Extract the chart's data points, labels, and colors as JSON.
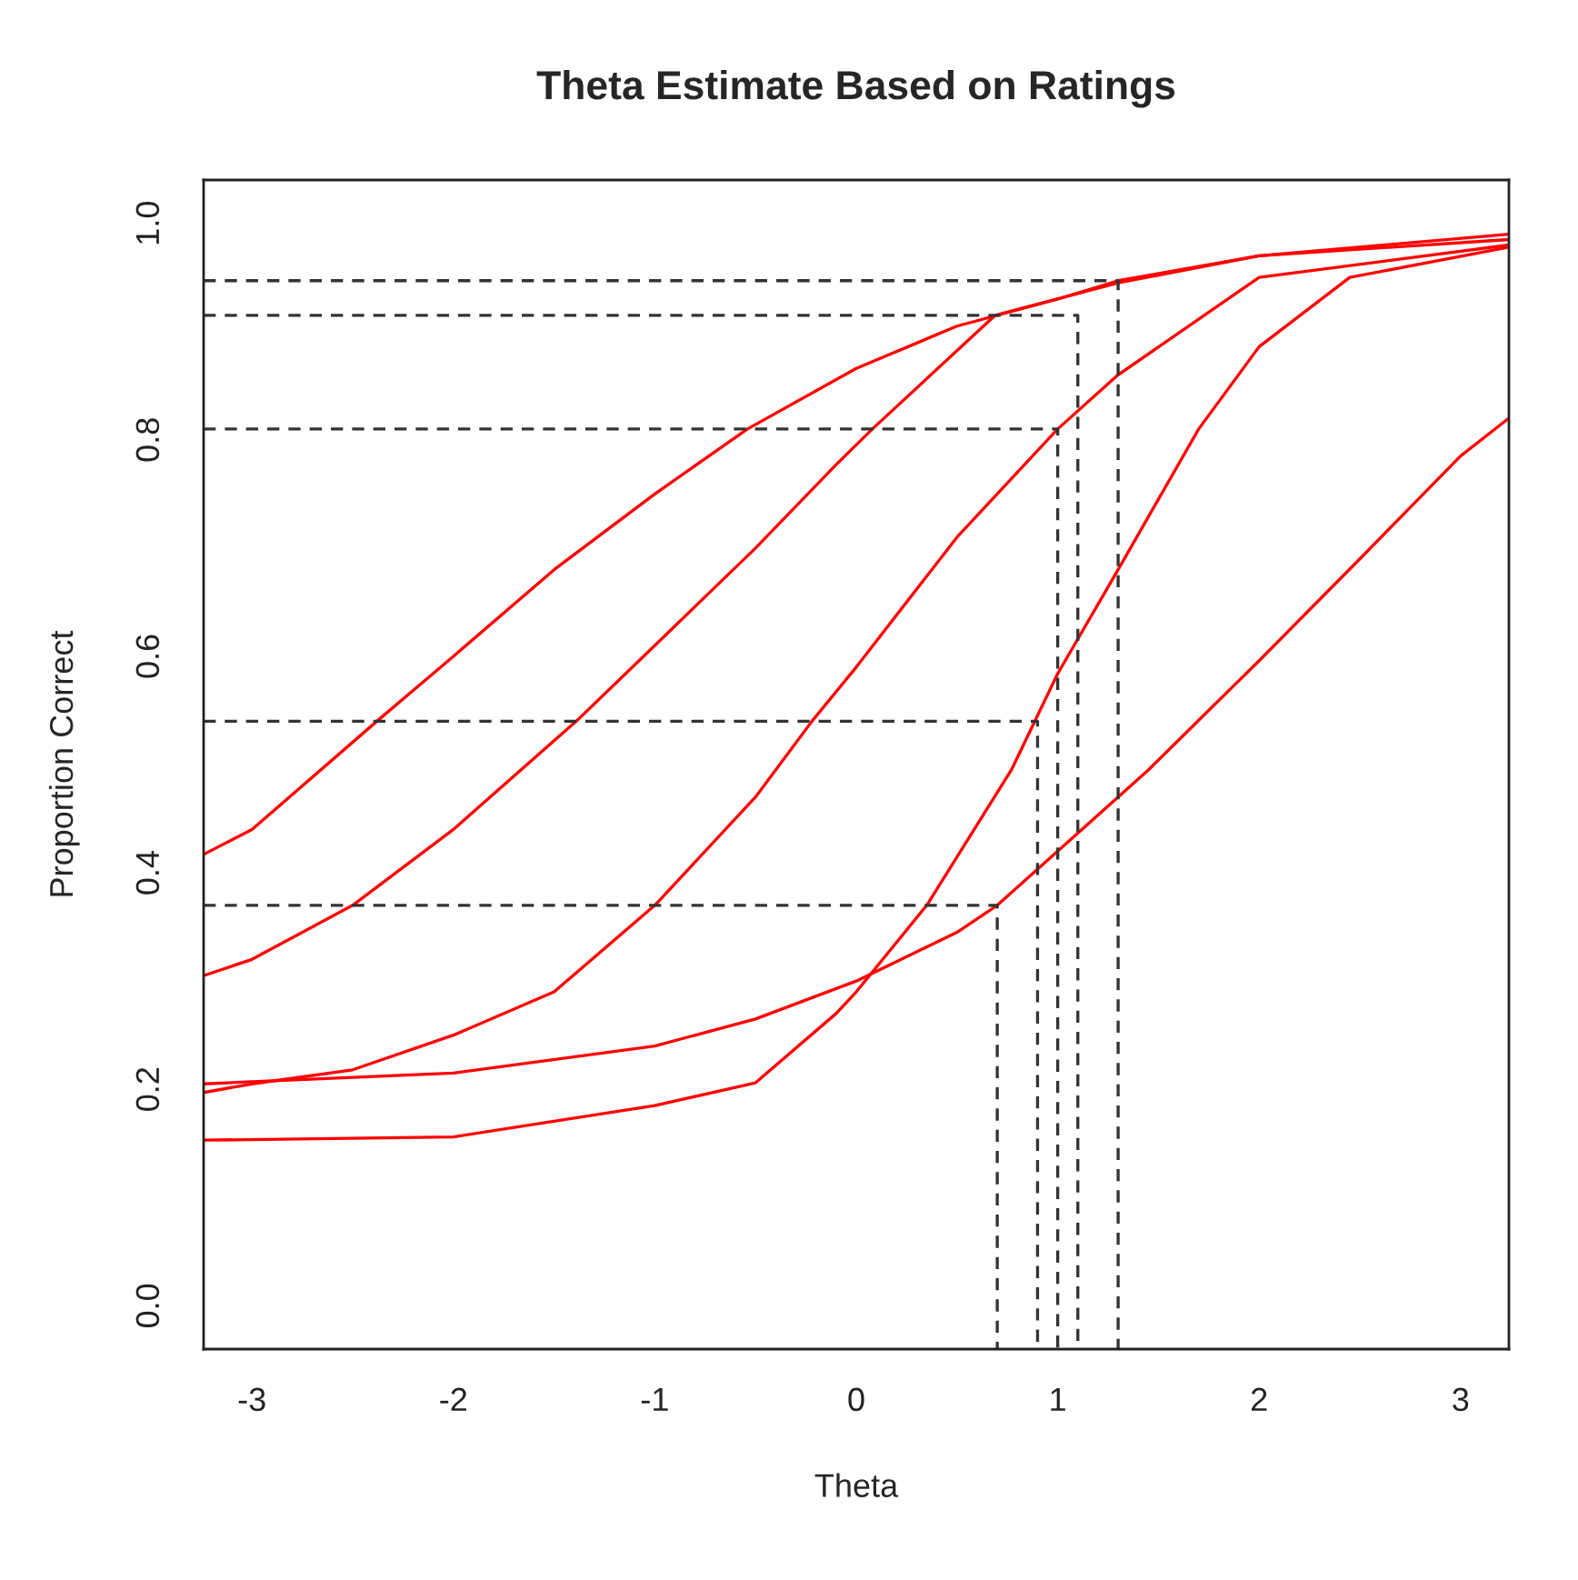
{
  "chart_data": {
    "type": "line",
    "title": "Theta Estimate Based on Ratings",
    "xlabel": "Theta",
    "ylabel": "Proportion Correct",
    "xlim": [
      -3.24,
      3.24
    ],
    "ylim": [
      -0.04,
      1.04
    ],
    "xticks": [
      -3,
      -2,
      -1,
      0,
      1,
      2,
      3
    ],
    "yticks": [
      {
        "value": 0,
        "label": "0.0"
      },
      0.2,
      0.4,
      0.6,
      0.8,
      {
        "value": 1,
        "label": "1.0"
      }
    ],
    "grid": false,
    "marker": "none",
    "series": [
      {
        "color": "#ff0000",
        "line_style": "solid",
        "x": [
          -3.24,
          -3,
          -2.38,
          -2,
          -1.5,
          -1,
          -0.54,
          0,
          0.5,
          1,
          1.3,
          2,
          3.24
        ],
        "values": [
          0.417,
          0.44,
          0.54,
          0.6,
          0.68,
          0.75,
          0.81,
          0.866,
          0.905,
          0.93,
          0.947,
          0.97,
          0.99
        ]
      },
      {
        "color": "#ff0000",
        "line_style": "solid",
        "x": [
          -3.24,
          -3,
          -2.5,
          -2,
          -1.39,
          -1,
          -0.5,
          -0.1,
          0.08,
          0.69,
          1.3,
          2,
          3.24
        ],
        "values": [
          0.305,
          0.32,
          0.37,
          0.44,
          0.54,
          0.61,
          0.7,
          0.777,
          0.81,
          0.915,
          0.945,
          0.97,
          0.985
        ]
      },
      {
        "color": "#ff0000",
        "line_style": "solid",
        "x": [
          -3.24,
          -3,
          -2.5,
          -2,
          -1.5,
          -1,
          -0.5,
          -0.22,
          0,
          0.5,
          1,
          1.3,
          2,
          3.24
        ],
        "values": [
          0.197,
          0.205,
          0.218,
          0.25,
          0.29,
          0.37,
          0.47,
          0.54,
          0.59,
          0.71,
          0.81,
          0.86,
          0.95,
          0.98
        ]
      },
      {
        "color": "#ff0000",
        "line_style": "solid",
        "x": [
          -3.24,
          -3,
          -2,
          -1,
          -0.5,
          0,
          0.5,
          0.7,
          1,
          1.3,
          1.45,
          2,
          2.5,
          3,
          3.24
        ],
        "values": [
          0.205,
          0.207,
          0.215,
          0.24,
          0.265,
          0.3,
          0.345,
          0.37,
          0.42,
          0.47,
          0.495,
          0.596,
          0.69,
          0.785,
          0.82
        ]
      },
      {
        "color": "#ff0000",
        "line_style": "solid",
        "x": [
          -3.24,
          -2,
          -1,
          -0.5,
          -0.1,
          0,
          0.35,
          0.77,
          1,
          1.3,
          1.7,
          2,
          2.45,
          3.24
        ],
        "values": [
          0.153,
          0.156,
          0.185,
          0.206,
          0.27,
          0.29,
          0.37,
          0.495,
          0.584,
          0.68,
          0.81,
          0.886,
          0.95,
          0.978
        ]
      },
      {
        "color": "#333333",
        "line_style": "dashed",
        "x": [
          -3.24,
          0.7,
          0.7
        ],
        "values": [
          0.37,
          0.37,
          -0.04
        ]
      },
      {
        "color": "#333333",
        "line_style": "dashed",
        "x": [
          -3.24,
          0.9,
          0.9
        ],
        "values": [
          0.54,
          0.54,
          -0.04
        ]
      },
      {
        "color": "#333333",
        "line_style": "dashed",
        "x": [
          -3.24,
          1.0,
          1.0
        ],
        "values": [
          0.81,
          0.81,
          -0.04
        ]
      },
      {
        "color": "#333333",
        "line_style": "dashed",
        "x": [
          -3.24,
          1.1,
          1.1
        ],
        "values": [
          0.915,
          0.915,
          -0.04
        ]
      },
      {
        "color": "#333333",
        "line_style": "dashed",
        "x": [
          -3.24,
          1.3,
          1.3
        ],
        "values": [
          0.947,
          0.947,
          -0.04
        ]
      }
    ]
  }
}
